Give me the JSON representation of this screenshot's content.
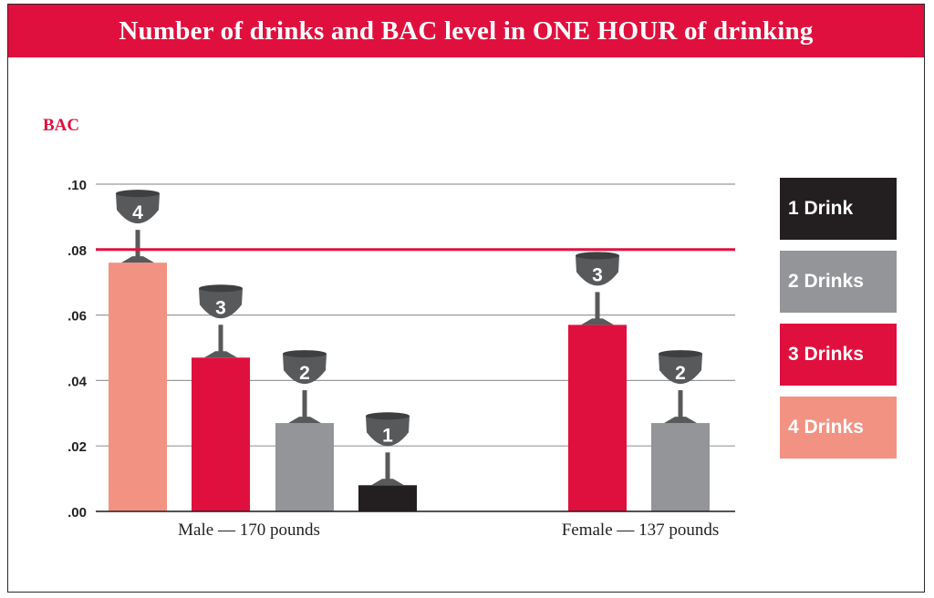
{
  "chart_data": {
    "type": "bar",
    "title": "Number of drinks and BAC level in ONE HOUR of drinking",
    "ylabel": "BAC",
    "ylim": [
      0,
      0.1
    ],
    "yticks": [
      ".10",
      ".08",
      ".06",
      ".04",
      ".02",
      ".00"
    ],
    "ytick_values": [
      0.1,
      0.08,
      0.06,
      0.04,
      0.02,
      0.0
    ],
    "reference_line": 0.08,
    "groups": [
      {
        "label": "Male — 170 pounds",
        "bars": [
          {
            "drinks": "4",
            "value": 0.076
          },
          {
            "drinks": "3",
            "value": 0.047
          },
          {
            "drinks": "2",
            "value": 0.027
          },
          {
            "drinks": "1",
            "value": 0.008
          }
        ]
      },
      {
        "label": "Female — 137 pounds",
        "bars": [
          {
            "drinks": "3",
            "value": 0.057
          },
          {
            "drinks": "2",
            "value": 0.027
          }
        ]
      }
    ],
    "legend": [
      {
        "label": "1 Drink",
        "key": "1"
      },
      {
        "label": "2 Drinks",
        "key": "2"
      },
      {
        "label": "3 Drinks",
        "key": "3"
      },
      {
        "label": "4 Drinks",
        "key": "4"
      }
    ],
    "colors": {
      "1": "#231f20",
      "2": "#939598",
      "3": "#e0103e",
      "4": "#f29283",
      "accent": "#e0103e",
      "grid": "#9a9a9a",
      "glass": "#58595b"
    },
    "legend_position": "right",
    "grid": true
  }
}
